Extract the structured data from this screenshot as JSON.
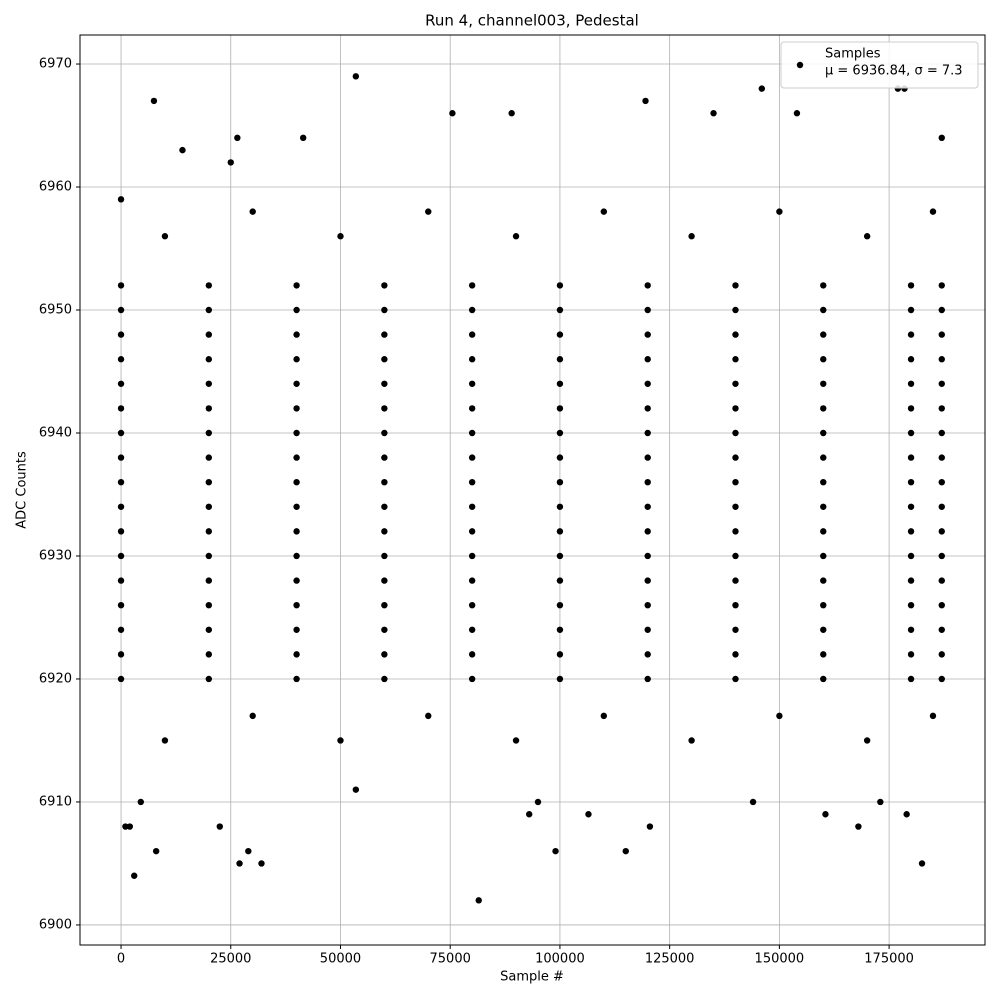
{
  "chart_data": {
    "type": "scatter",
    "title": "Run 4, channel003, Pedestal",
    "x_label": "Sample #",
    "y_label": "ADC Counts",
    "xlim": [
      -9350,
      196850
    ],
    "ylim": [
      6898.37,
      6972.36
    ],
    "xticks": [
      0,
      25000,
      50000,
      75000,
      100000,
      125000,
      150000,
      175000
    ],
    "yticks": [
      6900,
      6910,
      6920,
      6930,
      6940,
      6950,
      6960,
      6970
    ],
    "grid": true,
    "legend_position": "upper right",
    "legend_subtitle": "μ = 6936.84, σ = 7.3",
    "series": [
      {
        "name": "Samples",
        "color": "#000000",
        "x": [
          0,
          20000,
          40000,
          60000,
          80000,
          100000,
          120000,
          140000,
          160000,
          180000,
          187000,
          0,
          20000,
          40000,
          60000,
          80000,
          100000,
          120000,
          140000,
          160000,
          180000,
          187000,
          0,
          20000,
          40000,
          60000,
          80000,
          100000,
          120000,
          140000,
          160000,
          180000,
          187000,
          0,
          20000,
          40000,
          60000,
          80000,
          100000,
          120000,
          140000,
          160000,
          180000,
          187000,
          0,
          20000,
          40000,
          60000,
          80000,
          100000,
          120000,
          140000,
          160000,
          180000,
          187000,
          0,
          20000,
          40000,
          60000,
          80000,
          100000,
          120000,
          140000,
          160000,
          180000,
          187000,
          0,
          20000,
          40000,
          60000,
          80000,
          100000,
          120000,
          140000,
          160000,
          180000,
          187000,
          0,
          20000,
          40000,
          60000,
          80000,
          100000,
          120000,
          140000,
          160000,
          180000,
          187000,
          0,
          20000,
          40000,
          60000,
          80000,
          100000,
          120000,
          140000,
          160000,
          180000,
          187000,
          0,
          20000,
          40000,
          60000,
          80000,
          100000,
          120000,
          140000,
          160000,
          180000,
          187000,
          0,
          20000,
          40000,
          60000,
          80000,
          100000,
          120000,
          140000,
          160000,
          180000,
          187000,
          0,
          20000,
          40000,
          60000,
          80000,
          100000,
          120000,
          140000,
          160000,
          180000,
          187000,
          0,
          20000,
          40000,
          60000,
          80000,
          100000,
          120000,
          140000,
          160000,
          180000,
          187000,
          0,
          20000,
          40000,
          60000,
          80000,
          100000,
          120000,
          140000,
          160000,
          180000,
          187000,
          0,
          20000,
          40000,
          60000,
          80000,
          100000,
          120000,
          140000,
          160000,
          180000,
          187000,
          0,
          20000,
          40000,
          60000,
          80000,
          100000,
          120000,
          140000,
          160000,
          180000,
          187000,
          0,
          20000,
          40000,
          60000,
          80000,
          100000,
          120000,
          140000,
          160000,
          180000,
          187000,
          10000,
          50000,
          90000,
          130000,
          170000,
          30000,
          70000,
          110000,
          150000,
          185000,
          10000,
          50000,
          90000,
          130000,
          170000,
          30000,
          70000,
          110000,
          150000,
          185000,
          0,
          1000,
          2000,
          3000,
          7500,
          8000,
          14000,
          25000,
          26500,
          27000,
          29000,
          32000,
          41500,
          53500,
          53500,
          75500,
          81500,
          89000,
          93000,
          95000,
          99000,
          106500,
          115000,
          119500,
          120500,
          135000,
          144000,
          146000,
          154000,
          160500,
          168000,
          177000,
          178500,
          179000,
          182500,
          187000,
          173000,
          4500,
          22500
        ],
        "values": [
          6920,
          6920,
          6920,
          6920,
          6920,
          6920,
          6920,
          6920,
          6920,
          6920,
          6920,
          6922,
          6922,
          6922,
          6922,
          6922,
          6922,
          6922,
          6922,
          6922,
          6922,
          6922,
          6924,
          6924,
          6924,
          6924,
          6924,
          6924,
          6924,
          6924,
          6924,
          6924,
          6924,
          6926,
          6926,
          6926,
          6926,
          6926,
          6926,
          6926,
          6926,
          6926,
          6926,
          6926,
          6928,
          6928,
          6928,
          6928,
          6928,
          6928,
          6928,
          6928,
          6928,
          6928,
          6928,
          6930,
          6930,
          6930,
          6930,
          6930,
          6930,
          6930,
          6930,
          6930,
          6930,
          6930,
          6932,
          6932,
          6932,
          6932,
          6932,
          6932,
          6932,
          6932,
          6932,
          6932,
          6932,
          6934,
          6934,
          6934,
          6934,
          6934,
          6934,
          6934,
          6934,
          6934,
          6934,
          6934,
          6936,
          6936,
          6936,
          6936,
          6936,
          6936,
          6936,
          6936,
          6936,
          6936,
          6936,
          6938,
          6938,
          6938,
          6938,
          6938,
          6938,
          6938,
          6938,
          6938,
          6938,
          6938,
          6940,
          6940,
          6940,
          6940,
          6940,
          6940,
          6940,
          6940,
          6940,
          6940,
          6940,
          6942,
          6942,
          6942,
          6942,
          6942,
          6942,
          6942,
          6942,
          6942,
          6942,
          6942,
          6944,
          6944,
          6944,
          6944,
          6944,
          6944,
          6944,
          6944,
          6944,
          6944,
          6944,
          6946,
          6946,
          6946,
          6946,
          6946,
          6946,
          6946,
          6946,
          6946,
          6946,
          6946,
          6948,
          6948,
          6948,
          6948,
          6948,
          6948,
          6948,
          6948,
          6948,
          6948,
          6948,
          6950,
          6950,
          6950,
          6950,
          6950,
          6950,
          6950,
          6950,
          6950,
          6950,
          6950,
          6952,
          6952,
          6952,
          6952,
          6952,
          6952,
          6952,
          6952,
          6952,
          6952,
          6952,
          6915,
          6915,
          6915,
          6915,
          6915,
          6917,
          6917,
          6917,
          6917,
          6917,
          6956,
          6956,
          6956,
          6956,
          6956,
          6958,
          6958,
          6958,
          6958,
          6958,
          6959,
          6908,
          6908,
          6904,
          6967,
          6906,
          6963,
          6962,
          6964,
          6905,
          6906,
          6905,
          6964,
          6969,
          6911,
          6966,
          6902,
          6966,
          6909,
          6910,
          6906,
          6909,
          6906,
          6967,
          6908,
          6966,
          6910,
          6968,
          6966,
          6909,
          6908,
          6968,
          6968,
          6909,
          6905,
          6964,
          6910,
          6910,
          6908
        ]
      }
    ]
  }
}
